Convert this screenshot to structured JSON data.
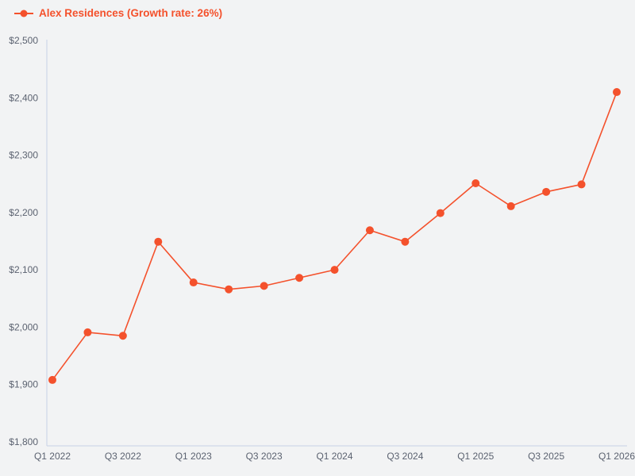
{
  "page": {
    "background": "#f2f3f4"
  },
  "legend": {
    "label": "Alex Residences (Growth rate: 26%)",
    "marker": "line-dot-icon"
  },
  "colors": {
    "series": "#f4512c",
    "legend_text": "#f4512c",
    "axis_line": "#c7d2e6",
    "tick_label": "#5b6270",
    "background": "#f2f3f4"
  },
  "chart_data": {
    "type": "line",
    "title": "",
    "series_name": "Alex Residences",
    "growth_rate_label": "26%",
    "x": [
      "Q1 2022",
      "Q2 2022",
      "Q3 2022",
      "Q4 2022",
      "Q1 2023",
      "Q2 2023",
      "Q3 2023",
      "Q4 2023",
      "Q1 2024",
      "Q2 2024",
      "Q3 2024",
      "Q4 2024",
      "Q1 2025",
      "Q2 2025",
      "Q3 2025",
      "Q4 2025",
      "Q1 2026"
    ],
    "values": [
      1908,
      1991,
      1985,
      2149,
      2078,
      2066,
      2072,
      2086,
      2100,
      2169,
      2149,
      2199,
      2251,
      2211,
      2236,
      2249,
      2410
    ],
    "ylim": [
      1800,
      2500
    ],
    "y_ticks": [
      1800,
      1900,
      2000,
      2100,
      2200,
      2300,
      2400,
      2500
    ],
    "y_tick_prefix": "$",
    "x_tick_every": 2,
    "grid": false,
    "legend_position": "top-left",
    "marker": "circle"
  }
}
